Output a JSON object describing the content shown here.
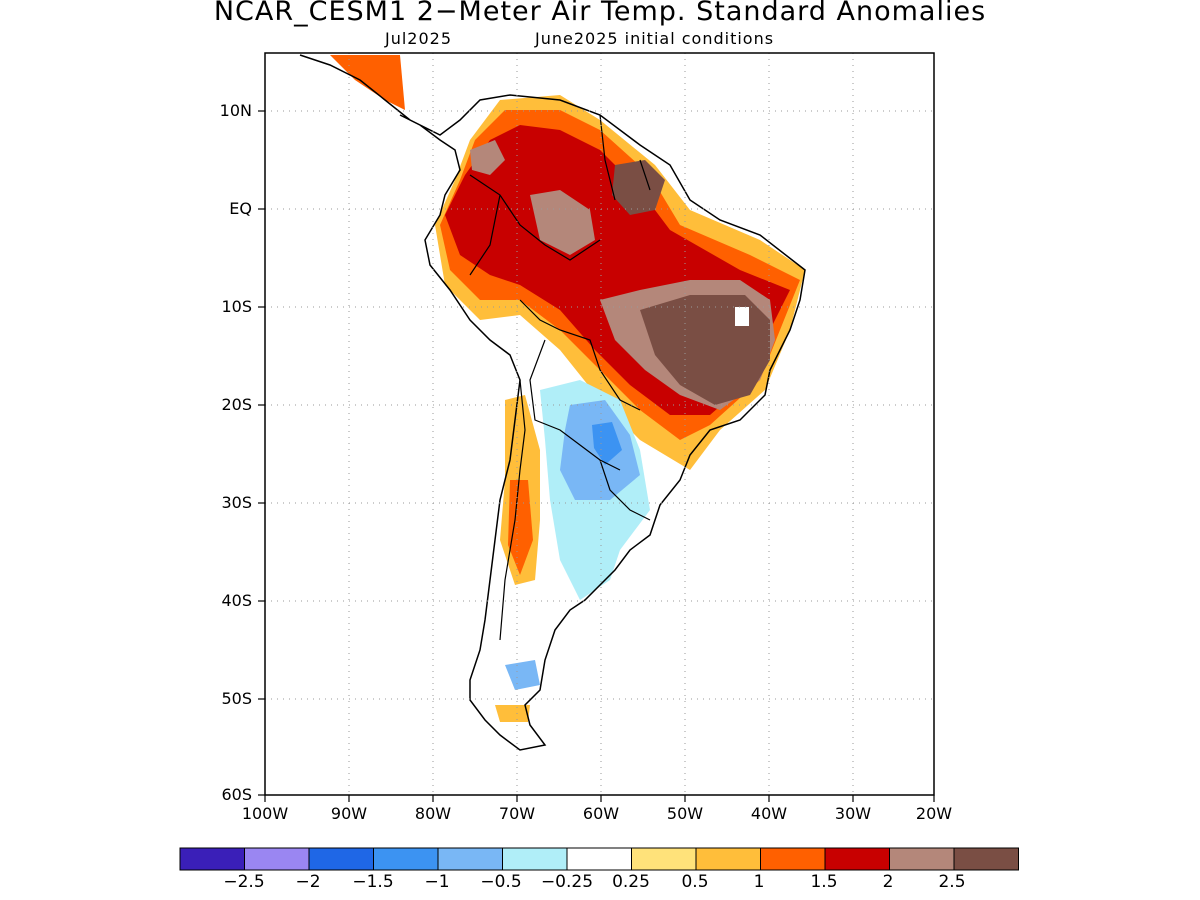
{
  "header": {
    "title": "NCAR_CESM1 2−Meter Air Temp. Standard Anomalies",
    "valid_month": "Jul2025",
    "init": "June2025 initial conditions"
  },
  "axes": {
    "lat_labels": [
      "10N",
      "EQ",
      "10S",
      "20S",
      "30S",
      "40S",
      "50S",
      "60S"
    ],
    "lon_labels": [
      "100W",
      "90W",
      "80W",
      "70W",
      "60W",
      "50W",
      "40W",
      "30W",
      "20W"
    ]
  },
  "colorbar": {
    "colors": [
      "#3a1fb8",
      "#9a86f2",
      "#1f67e6",
      "#3c93f2",
      "#79b7f5",
      "#b0eef8",
      "#ffffff",
      "#ffe27a",
      "#ffbe3a",
      "#ff6000",
      "#c80000",
      "#b4877a",
      "#7a4e44"
    ],
    "labels": [
      "−2.5",
      "−2",
      "−1.5",
      "−1",
      "−0.5",
      "−0.25",
      "0.25",
      "0.5",
      "1",
      "1.5",
      "2",
      "2.5"
    ]
  }
}
